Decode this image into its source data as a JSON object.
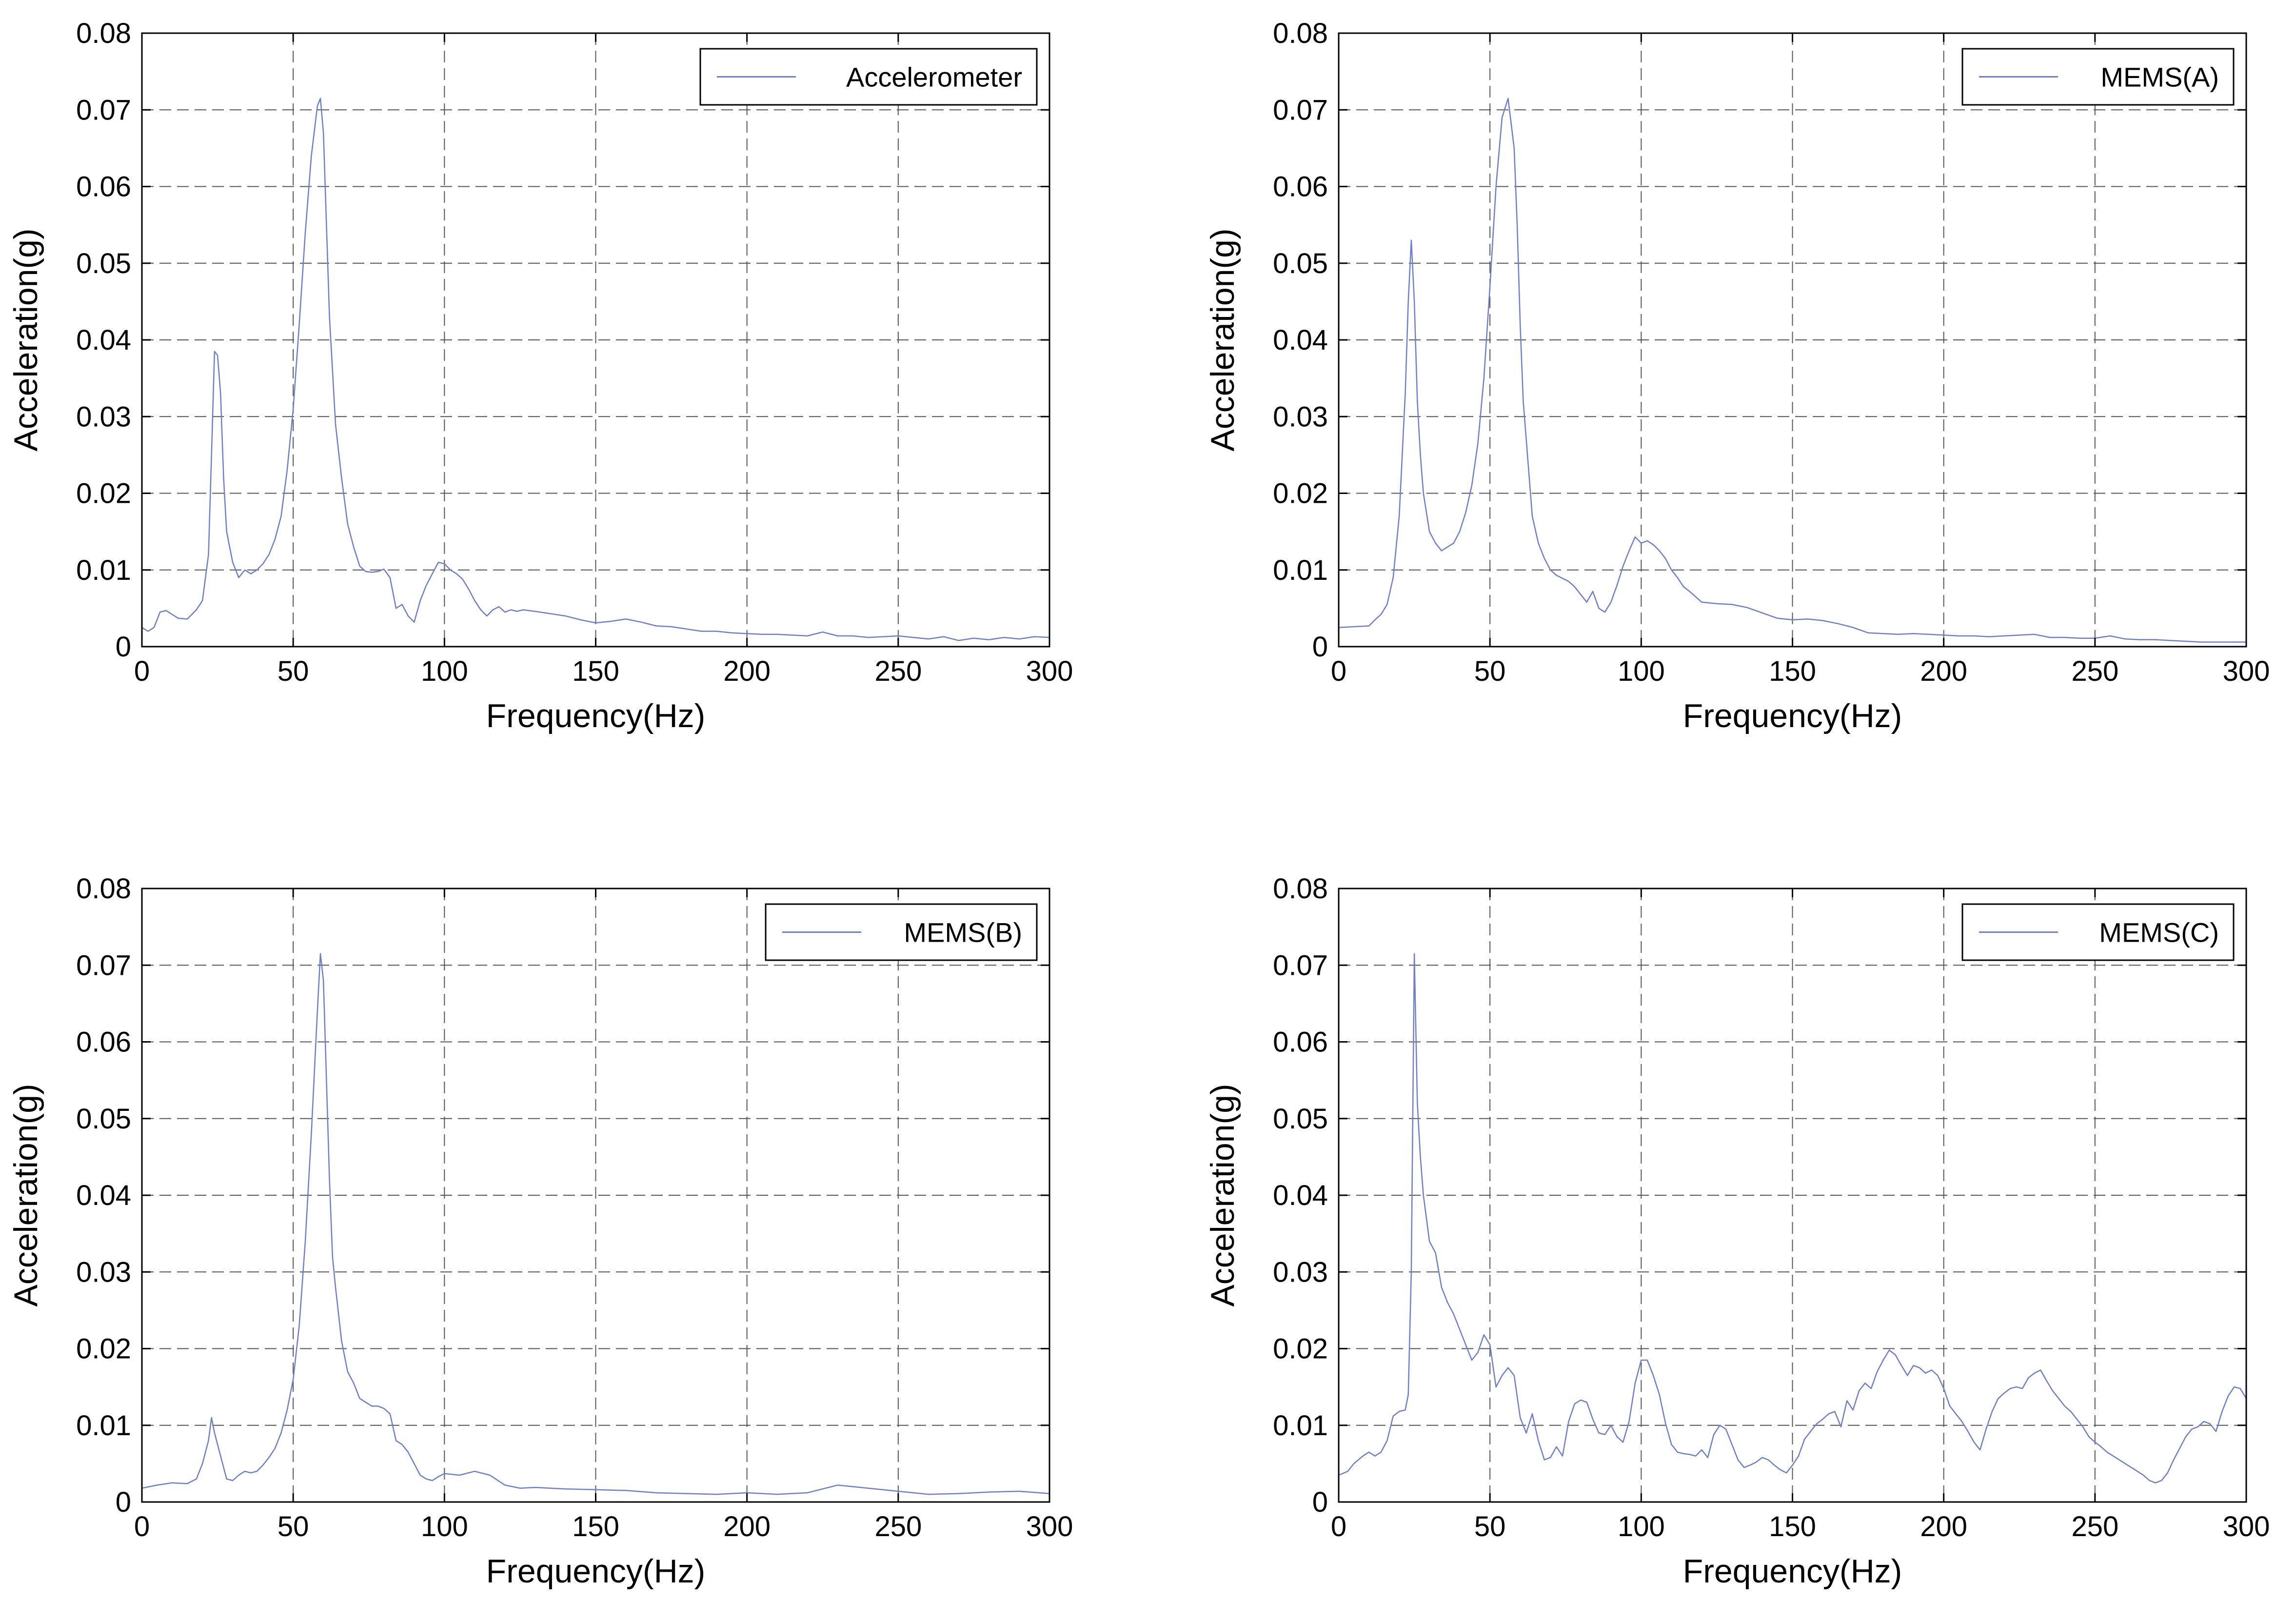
{
  "chart_data": [
    {
      "type": "line",
      "xlabel": "Frequency(Hz)",
      "ylabel": "Acceleration(g)",
      "xlim": [
        0,
        300
      ],
      "ylim": [
        0,
        0.08
      ],
      "xticks": [
        "0",
        "50",
        "100",
        "150",
        "200",
        "250",
        "300"
      ],
      "yticks": [
        "0",
        "0.01",
        "0.02",
        "0.03",
        "0.04",
        "0.05",
        "0.06",
        "0.07",
        "0.08"
      ],
      "grid": true,
      "legend_position": "top-right",
      "line_color": "#6f7fc4",
      "series": [
        {
          "name": "Accelerometer",
          "x": [
            0,
            2,
            4,
            6,
            8,
            10,
            12,
            15,
            18,
            20,
            22,
            23,
            24,
            25,
            26,
            27,
            28,
            30,
            32,
            34,
            36,
            38,
            40,
            42,
            44,
            46,
            48,
            50,
            52,
            54,
            56,
            58,
            59,
            60,
            61,
            62,
            64,
            66,
            68,
            70,
            72,
            74,
            76,
            78,
            80,
            82,
            84,
            86,
            88,
            90,
            92,
            94,
            96,
            98,
            100,
            102,
            104,
            106,
            108,
            110,
            112,
            114,
            116,
            118,
            120,
            122,
            124,
            126,
            128,
            130,
            135,
            140,
            145,
            150,
            155,
            160,
            165,
            170,
            175,
            180,
            185,
            190,
            195,
            200,
            205,
            210,
            215,
            220,
            225,
            230,
            235,
            240,
            245,
            250,
            255,
            260,
            265,
            270,
            275,
            280,
            285,
            290,
            295,
            300
          ],
          "y": [
            0.0025,
            0.002,
            0.0025,
            0.0045,
            0.0047,
            0.0042,
            0.0037,
            0.0036,
            0.0048,
            0.006,
            0.012,
            0.025,
            0.0385,
            0.038,
            0.033,
            0.022,
            0.015,
            0.011,
            0.009,
            0.01,
            0.0095,
            0.01,
            0.0108,
            0.012,
            0.014,
            0.017,
            0.023,
            0.031,
            0.042,
            0.054,
            0.064,
            0.0705,
            0.0715,
            0.067,
            0.055,
            0.043,
            0.029,
            0.022,
            0.016,
            0.013,
            0.0105,
            0.0098,
            0.0097,
            0.0098,
            0.0101,
            0.009,
            0.005,
            0.0055,
            0.004,
            0.0032,
            0.006,
            0.008,
            0.0095,
            0.011,
            0.0108,
            0.01,
            0.0095,
            0.0088,
            0.0075,
            0.006,
            0.0048,
            0.004,
            0.0048,
            0.0052,
            0.0045,
            0.0048,
            0.0046,
            0.0048,
            0.0047,
            0.0046,
            0.0043,
            0.004,
            0.0035,
            0.0031,
            0.0033,
            0.0036,
            0.0032,
            0.0027,
            0.0026,
            0.0023,
            0.002,
            0.002,
            0.0018,
            0.0017,
            0.0016,
            0.0016,
            0.0015,
            0.0014,
            0.0019,
            0.0014,
            0.0014,
            0.0012,
            0.0013,
            0.0014,
            0.0012,
            0.001,
            0.0013,
            0.0008,
            0.0011,
            0.0009,
            0.0012,
            0.001,
            0.0013,
            0.0012
          ]
        }
      ]
    },
    {
      "type": "line",
      "xlabel": "Frequency(Hz)",
      "ylabel": "Acceleration(g)",
      "xlim": [
        0,
        300
      ],
      "ylim": [
        0,
        0.08
      ],
      "xticks": [
        "0",
        "50",
        "100",
        "150",
        "200",
        "250",
        "300"
      ],
      "yticks": [
        "0",
        "0.01",
        "0.02",
        "0.03",
        "0.04",
        "0.05",
        "0.06",
        "0.07",
        "0.08"
      ],
      "grid": true,
      "legend_position": "top-right",
      "line_color": "#6f7fc4",
      "series": [
        {
          "name": "MEMS(A)",
          "x": [
            0,
            5,
            10,
            12,
            14,
            16,
            18,
            20,
            22,
            23,
            24,
            25,
            26,
            27,
            28,
            30,
            32,
            34,
            36,
            38,
            40,
            42,
            44,
            46,
            48,
            50,
            52,
            54,
            56,
            58,
            59,
            60,
            61,
            62,
            63,
            64,
            66,
            68,
            70,
            72,
            74,
            76,
            78,
            80,
            82,
            84,
            86,
            88,
            90,
            92,
            94,
            96,
            98,
            100,
            102,
            104,
            106,
            108,
            110,
            112,
            114,
            116,
            118,
            120,
            125,
            130,
            135,
            140,
            145,
            150,
            155,
            160,
            165,
            170,
            175,
            180,
            185,
            190,
            195,
            200,
            205,
            210,
            215,
            220,
            225,
            230,
            235,
            240,
            245,
            250,
            255,
            260,
            265,
            270,
            275,
            280,
            285,
            290,
            295,
            300
          ],
          "y": [
            0.0025,
            0.0026,
            0.0027,
            0.0035,
            0.0042,
            0.0055,
            0.009,
            0.017,
            0.033,
            0.045,
            0.053,
            0.045,
            0.032,
            0.025,
            0.02,
            0.015,
            0.0135,
            0.0125,
            0.013,
            0.0135,
            0.015,
            0.0175,
            0.021,
            0.0265,
            0.035,
            0.047,
            0.06,
            0.069,
            0.0715,
            0.065,
            0.055,
            0.042,
            0.032,
            0.027,
            0.022,
            0.017,
            0.0135,
            0.0115,
            0.01,
            0.0093,
            0.0089,
            0.0085,
            0.0078,
            0.0068,
            0.0058,
            0.0072,
            0.005,
            0.0045,
            0.0058,
            0.008,
            0.0105,
            0.0125,
            0.0143,
            0.0135,
            0.0138,
            0.0133,
            0.0125,
            0.0115,
            0.01,
            0.009,
            0.0078,
            0.0072,
            0.0065,
            0.0058,
            0.0056,
            0.0055,
            0.0051,
            0.0044,
            0.0037,
            0.0035,
            0.0036,
            0.0034,
            0.003,
            0.0025,
            0.0018,
            0.0017,
            0.0016,
            0.0017,
            0.0016,
            0.0015,
            0.0014,
            0.0014,
            0.0013,
            0.0014,
            0.0015,
            0.0016,
            0.0012,
            0.0012,
            0.0011,
            0.0011,
            0.0014,
            0.001,
            0.0009,
            0.0009,
            0.0008,
            0.0007,
            0.0006,
            0.0006,
            0.0006,
            0.0006
          ]
        }
      ]
    },
    {
      "type": "line",
      "xlabel": "Frequency(Hz)",
      "ylabel": "Acceleration(g)",
      "xlim": [
        0,
        300
      ],
      "ylim": [
        0,
        0.08
      ],
      "xticks": [
        "0",
        "50",
        "100",
        "150",
        "200",
        "250",
        "300"
      ],
      "yticks": [
        "0",
        "0.01",
        "0.02",
        "0.03",
        "0.04",
        "0.05",
        "0.06",
        "0.07",
        "0.08"
      ],
      "grid": true,
      "legend_position": "top-right",
      "line_color": "#6f7fc4",
      "series": [
        {
          "name": "MEMS(B)",
          "x": [
            0,
            5,
            10,
            15,
            18,
            20,
            22,
            23,
            24,
            25,
            26,
            28,
            30,
            32,
            34,
            36,
            38,
            40,
            42,
            44,
            46,
            48,
            50,
            52,
            54,
            56,
            58,
            59,
            60,
            61,
            62,
            63,
            64,
            66,
            68,
            70,
            72,
            74,
            76,
            78,
            80,
            82,
            84,
            86,
            88,
            90,
            92,
            94,
            96,
            98,
            100,
            105,
            110,
            115,
            120,
            125,
            130,
            140,
            150,
            160,
            170,
            180,
            190,
            200,
            210,
            220,
            230,
            240,
            250,
            260,
            270,
            280,
            290,
            300
          ],
          "y": [
            0.0018,
            0.0022,
            0.0025,
            0.0024,
            0.003,
            0.005,
            0.008,
            0.011,
            0.009,
            0.0075,
            0.006,
            0.003,
            0.0028,
            0.0035,
            0.004,
            0.0038,
            0.004,
            0.0048,
            0.0058,
            0.007,
            0.009,
            0.012,
            0.016,
            0.023,
            0.034,
            0.048,
            0.064,
            0.0715,
            0.068,
            0.055,
            0.042,
            0.032,
            0.028,
            0.021,
            0.017,
            0.0155,
            0.0135,
            0.013,
            0.0125,
            0.0125,
            0.0122,
            0.0115,
            0.008,
            0.0075,
            0.0065,
            0.005,
            0.0035,
            0.003,
            0.0028,
            0.0033,
            0.0037,
            0.0035,
            0.004,
            0.0035,
            0.0022,
            0.0018,
            0.0019,
            0.0017,
            0.0016,
            0.0015,
            0.0012,
            0.0011,
            0.001,
            0.0012,
            0.001,
            0.0012,
            0.0022,
            0.0018,
            0.0014,
            0.001,
            0.0011,
            0.0013,
            0.0014,
            0.0011
          ]
        }
      ]
    },
    {
      "type": "line",
      "xlabel": "Frequency(Hz)",
      "ylabel": "Acceleration(g)",
      "xlim": [
        0,
        300
      ],
      "ylim": [
        0,
        0.08
      ],
      "xticks": [
        "0",
        "50",
        "100",
        "150",
        "200",
        "250",
        "300"
      ],
      "yticks": [
        "0",
        "0.01",
        "0.02",
        "0.03",
        "0.04",
        "0.05",
        "0.06",
        "0.07",
        "0.08"
      ],
      "grid": true,
      "legend_position": "top-right",
      "line_color": "#6f7fc4",
      "series": [
        {
          "name": "MEMS(C)",
          "x": [
            0,
            3,
            5,
            8,
            10,
            12,
            14,
            16,
            18,
            20,
            22,
            23,
            24,
            25,
            26,
            27,
            28,
            30,
            32,
            34,
            36,
            38,
            40,
            42,
            44,
            46,
            48,
            50,
            52,
            54,
            56,
            58,
            60,
            62,
            64,
            66,
            68,
            70,
            72,
            74,
            76,
            78,
            80,
            82,
            84,
            86,
            88,
            90,
            92,
            94,
            96,
            98,
            100,
            102,
            104,
            106,
            108,
            110,
            112,
            114,
            116,
            118,
            120,
            122,
            124,
            126,
            128,
            130,
            132,
            134,
            136,
            138,
            140,
            142,
            144,
            146,
            148,
            150,
            152,
            154,
            156,
            158,
            160,
            162,
            164,
            166,
            168,
            170,
            172,
            174,
            176,
            178,
            180,
            182,
            184,
            186,
            188,
            190,
            192,
            194,
            196,
            198,
            200,
            202,
            204,
            206,
            208,
            210,
            212,
            214,
            216,
            218,
            220,
            222,
            224,
            226,
            228,
            230,
            232,
            234,
            236,
            238,
            240,
            242,
            244,
            246,
            248,
            250,
            252,
            254,
            256,
            258,
            260,
            262,
            264,
            266,
            268,
            270,
            272,
            274,
            276,
            278,
            280,
            282,
            284,
            286,
            288,
            290,
            292,
            294,
            296,
            298,
            300
          ],
          "y": [
            0.0035,
            0.004,
            0.005,
            0.006,
            0.0065,
            0.006,
            0.0065,
            0.008,
            0.0112,
            0.0118,
            0.012,
            0.014,
            0.03,
            0.0715,
            0.052,
            0.045,
            0.04,
            0.034,
            0.0325,
            0.028,
            0.026,
            0.0245,
            0.0225,
            0.0205,
            0.0185,
            0.0195,
            0.0218,
            0.0205,
            0.015,
            0.0165,
            0.0175,
            0.0165,
            0.011,
            0.009,
            0.0115,
            0.008,
            0.0055,
            0.0058,
            0.0072,
            0.006,
            0.0105,
            0.0128,
            0.0133,
            0.013,
            0.0108,
            0.009,
            0.0088,
            0.01,
            0.0085,
            0.0078,
            0.0105,
            0.0155,
            0.0185,
            0.0185,
            0.0165,
            0.014,
            0.0103,
            0.0075,
            0.0065,
            0.0063,
            0.0062,
            0.006,
            0.0068,
            0.0058,
            0.0088,
            0.01,
            0.0095,
            0.0075,
            0.0055,
            0.0045,
            0.0048,
            0.0052,
            0.0058,
            0.0055,
            0.0048,
            0.0042,
            0.0038,
            0.0048,
            0.006,
            0.0082,
            0.0092,
            0.0102,
            0.0108,
            0.0115,
            0.0118,
            0.0098,
            0.0132,
            0.012,
            0.0145,
            0.0155,
            0.0148,
            0.017,
            0.0185,
            0.0198,
            0.0192,
            0.0178,
            0.0165,
            0.0178,
            0.0175,
            0.0168,
            0.0172,
            0.0165,
            0.0148,
            0.0125,
            0.0115,
            0.0105,
            0.0092,
            0.0078,
            0.0068,
            0.0095,
            0.0118,
            0.0135,
            0.0142,
            0.0148,
            0.015,
            0.0148,
            0.0162,
            0.0168,
            0.0172,
            0.0158,
            0.0145,
            0.0135,
            0.0125,
            0.0118,
            0.0108,
            0.0098,
            0.0085,
            0.0078,
            0.0072,
            0.0065,
            0.006,
            0.0055,
            0.005,
            0.0045,
            0.004,
            0.0035,
            0.0028,
            0.0025,
            0.0028,
            0.0038,
            0.0055,
            0.007,
            0.0085,
            0.0095,
            0.0098,
            0.0105,
            0.0102,
            0.0092,
            0.0118,
            0.0138,
            0.015,
            0.0148,
            0.0135
          ]
        }
      ]
    }
  ]
}
